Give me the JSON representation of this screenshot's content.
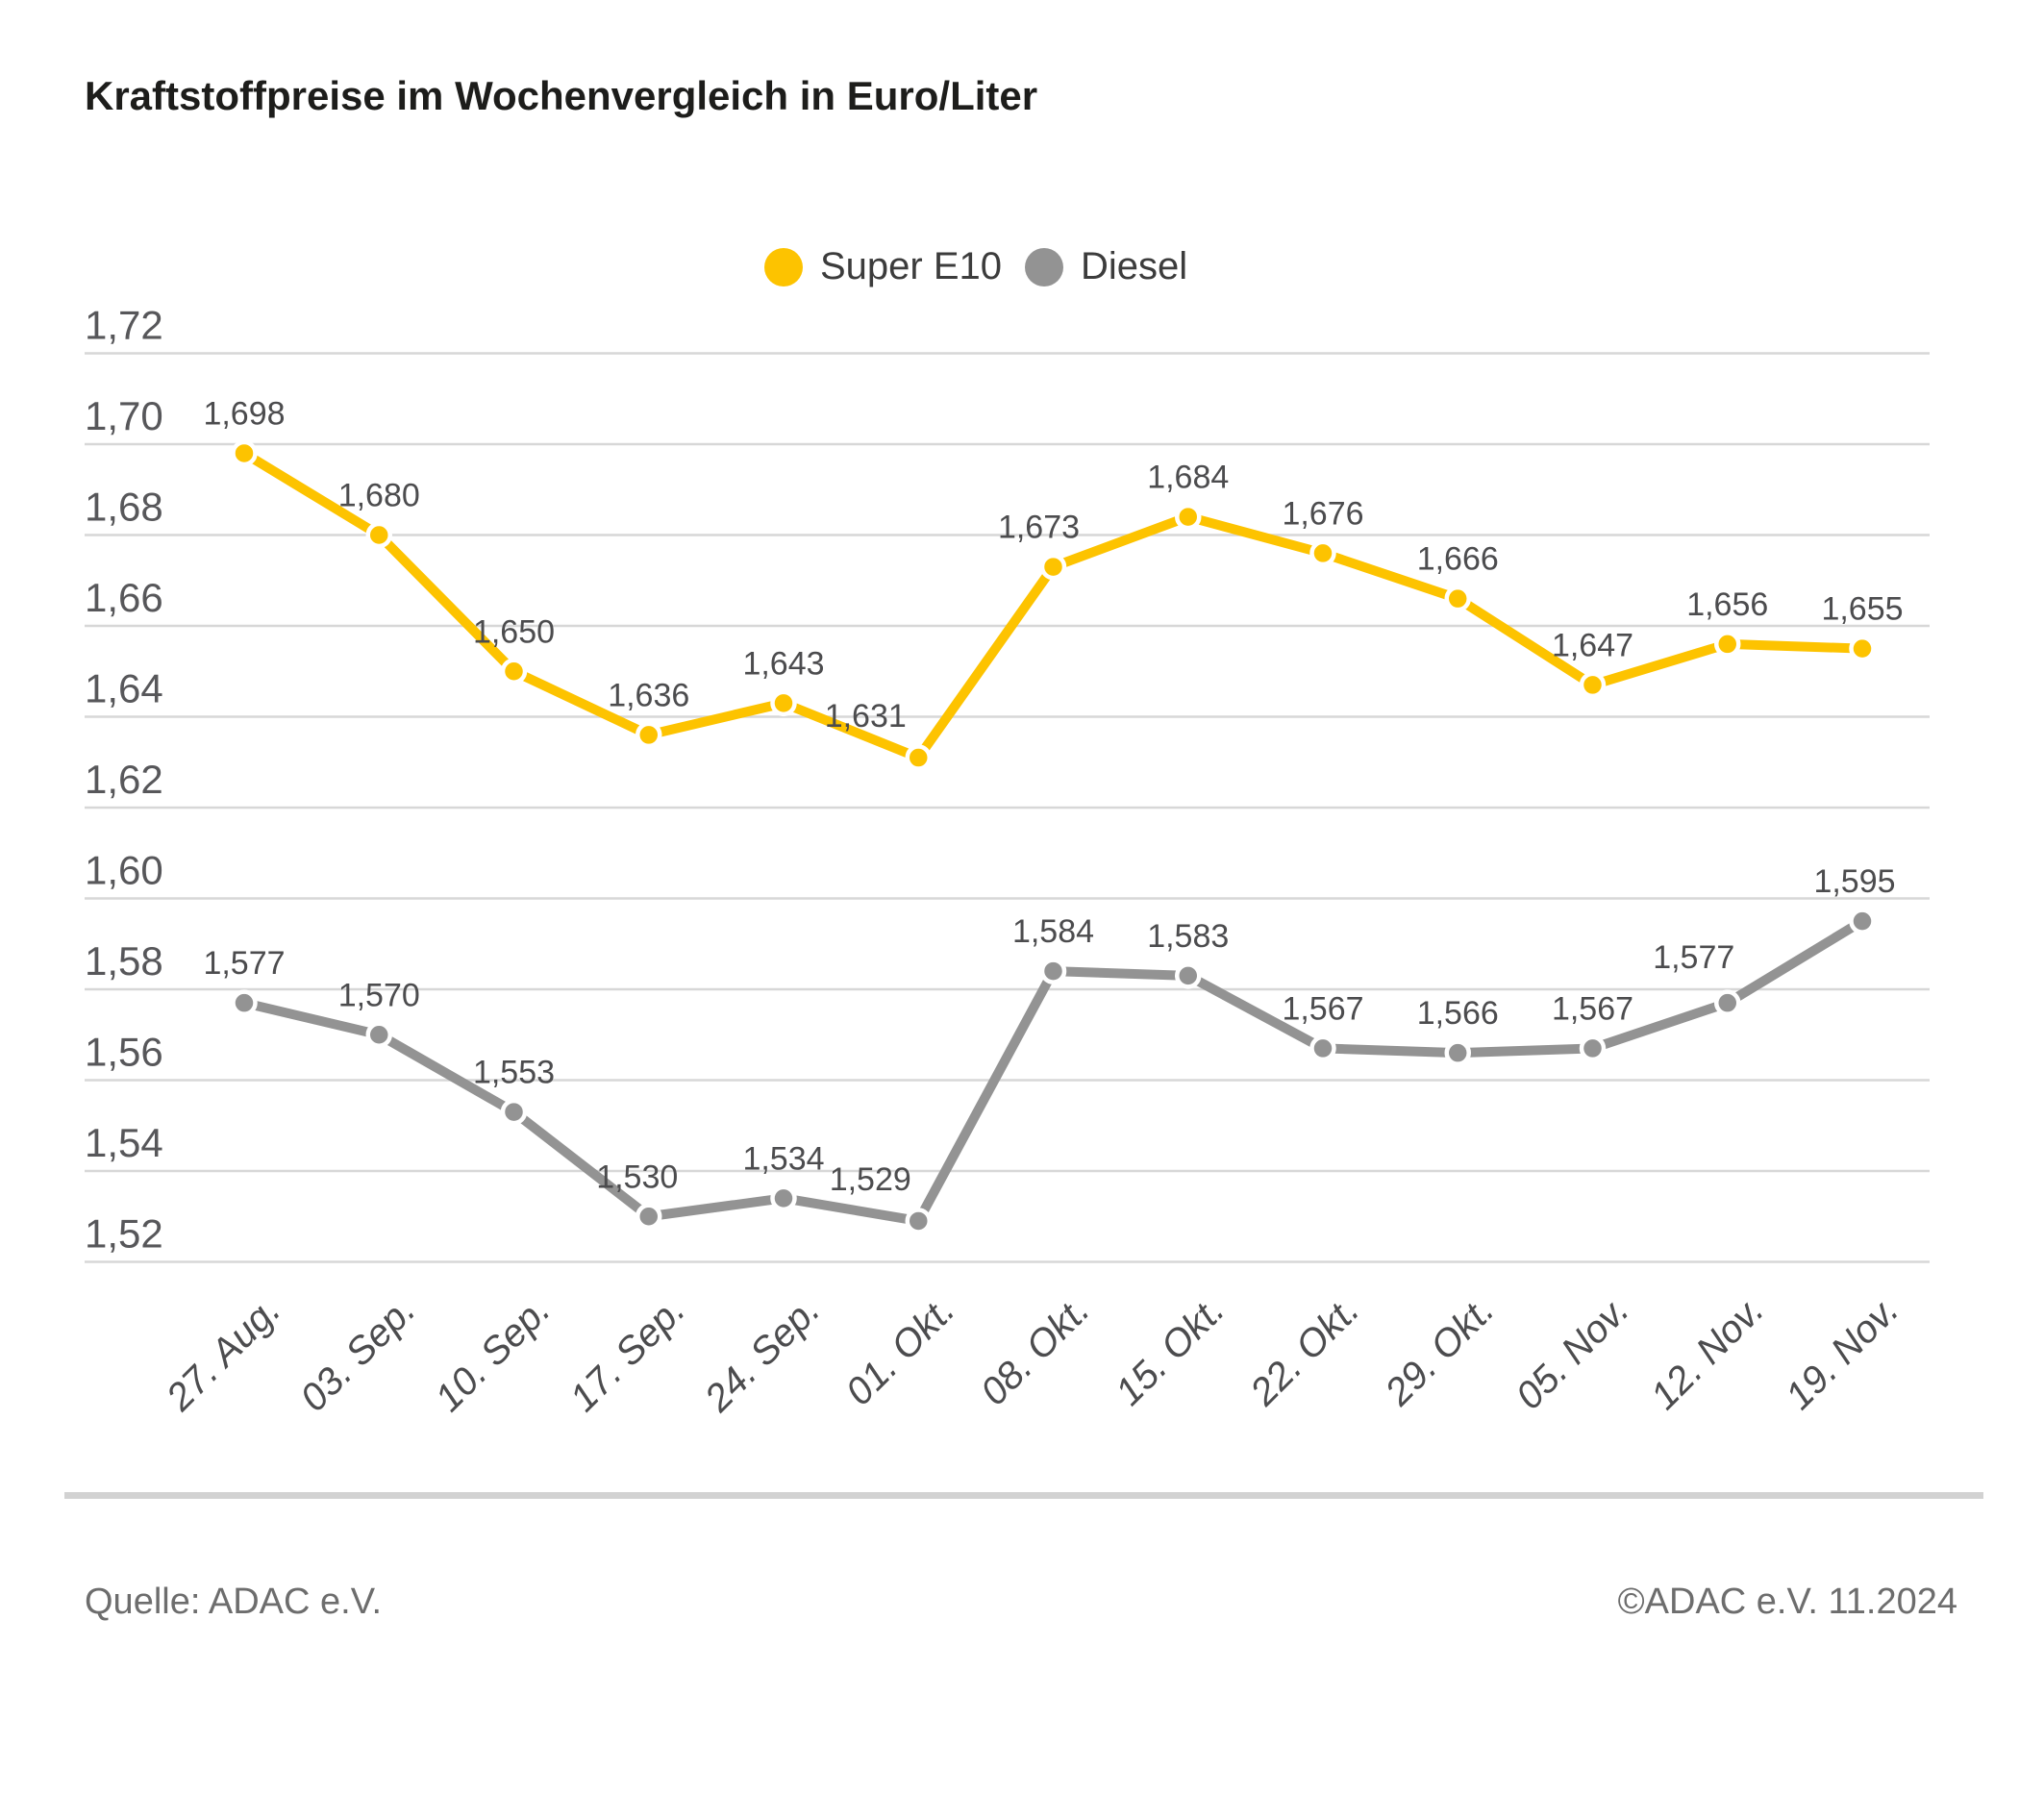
{
  "title": "Kraftstoffpreise im Wochenvergleich in Euro/Liter",
  "footer": {
    "source": "Quelle: ADAC e.V.",
    "copyright": "©ADAC e.V. 11.2024"
  },
  "colors": {
    "super_e10": "#fdc300",
    "diesel": "#939393",
    "grid": "#d7d7d7"
  },
  "chart_data": {
    "type": "line",
    "title": "Kraftstoffpreise im Wochenvergleich in Euro/Liter",
    "categories": [
      "27. Aug.",
      "03. Sep.",
      "10. Sep.",
      "17. Sep.",
      "24. Sep.",
      "01. Okt.",
      "08. Okt.",
      "15. Okt.",
      "22. Okt.",
      "29. Okt.",
      "05. Nov.",
      "12. Nov.",
      "19. Nov."
    ],
    "series": [
      {
        "name": "Super E10",
        "color": "#fdc300",
        "values": [
          1.698,
          1.68,
          1.65,
          1.636,
          1.643,
          1.631,
          1.673,
          1.684,
          1.676,
          1.666,
          1.647,
          1.656,
          1.655
        ],
        "labels": [
          "1,698",
          "1,680",
          "1,650",
          "1,636",
          "1,643",
          "1,631",
          "1,673",
          "1,684",
          "1,676",
          "1,666",
          "1,647",
          "1,656",
          "1,655"
        ]
      },
      {
        "name": "Diesel",
        "color": "#939393",
        "values": [
          1.577,
          1.57,
          1.553,
          1.53,
          1.534,
          1.529,
          1.584,
          1.583,
          1.567,
          1.566,
          1.567,
          1.577,
          1.595
        ],
        "labels": [
          "1,577",
          "1,570",
          "1,553",
          "1,530",
          "1,534",
          "1,529",
          "1,584",
          "1,583",
          "1,567",
          "1,566",
          "1,567",
          "1,577",
          "1,595"
        ]
      }
    ],
    "y_ticks": [
      "1,72",
      "1,70",
      "1,68",
      "1,66",
      "1,64",
      "1,62",
      "1,60",
      "1,58",
      "1,56",
      "1,54",
      "1,52"
    ],
    "ylim": [
      1.52,
      1.72
    ],
    "xlabel": "",
    "ylabel": "",
    "grid": true,
    "legend_position": "top-center",
    "decimal_style": "comma"
  }
}
